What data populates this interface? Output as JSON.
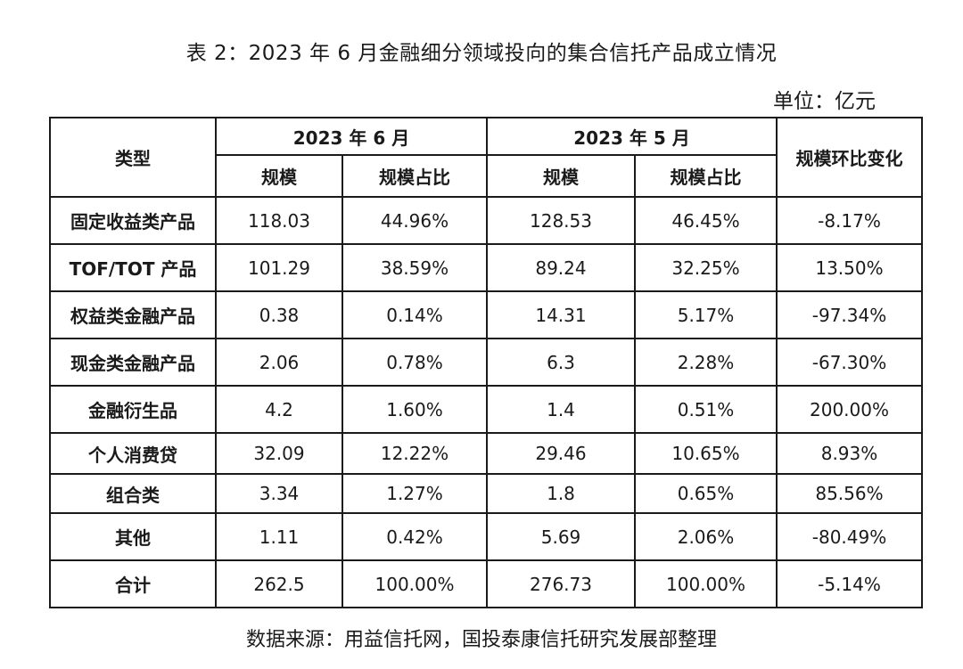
{
  "title": "表 2：2023 年 6 月金融细分领域投向的集合信托产品成立情况",
  "unit": "单位：亿元",
  "table": {
    "header": {
      "type_label": "类型",
      "june_label": "2023 年 6 月",
      "may_label": "2023 年 5 月",
      "change_label": "规模环比变化",
      "scale_label": "规模",
      "share_label": "规模占比"
    },
    "rows": [
      {
        "category": "固定收益类产品",
        "jun_scale": "118.03",
        "jun_share": "44.96%",
        "may_scale": "128.53",
        "may_share": "46.45%",
        "change": "-8.17%"
      },
      {
        "category": "TOF/TOT 产品",
        "jun_scale": "101.29",
        "jun_share": "38.59%",
        "may_scale": "89.24",
        "may_share": "32.25%",
        "change": "13.50%"
      },
      {
        "category": "权益类金融产品",
        "jun_scale": "0.38",
        "jun_share": "0.14%",
        "may_scale": "14.31",
        "may_share": "5.17%",
        "change": "-97.34%"
      },
      {
        "category": "现金类金融产品",
        "jun_scale": "2.06",
        "jun_share": "0.78%",
        "may_scale": "6.3",
        "may_share": "2.28%",
        "change": "-67.30%"
      },
      {
        "category": "金融衍生品",
        "jun_scale": "4.2",
        "jun_share": "1.60%",
        "may_scale": "1.4",
        "may_share": "0.51%",
        "change": "200.00%"
      },
      {
        "category": "个人消费贷",
        "jun_scale": "32.09",
        "jun_share": "12.22%",
        "may_scale": "29.46",
        "may_share": "10.65%",
        "change": "8.93%"
      },
      {
        "category": "组合类",
        "jun_scale": "3.34",
        "jun_share": "1.27%",
        "may_scale": "1.8",
        "may_share": "0.65%",
        "change": "85.56%"
      },
      {
        "category": "其他",
        "jun_scale": "1.11",
        "jun_share": "0.42%",
        "may_scale": "5.69",
        "may_share": "2.06%",
        "change": "-80.49%"
      },
      {
        "category": "合计",
        "jun_scale": "262.5",
        "jun_share": "100.00%",
        "may_scale": "276.73",
        "may_share": "100.00%",
        "change": "-5.14%"
      }
    ]
  },
  "source": "数据来源：用益信托网，国投泰康信托研究发展部整理"
}
